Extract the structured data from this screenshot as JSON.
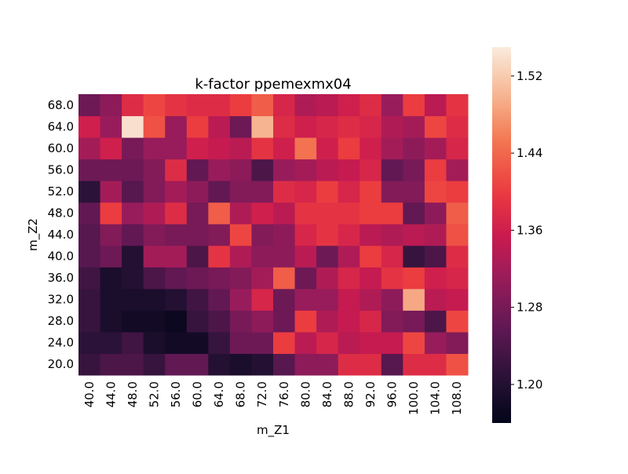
{
  "chart_data": {
    "type": "heatmap",
    "title": "k-factor ppemexmx04",
    "xlabel": "m_Z1",
    "ylabel": "m_Z2",
    "x": [
      "40.0",
      "44.0",
      "48.0",
      "52.0",
      "56.0",
      "60.0",
      "64.0",
      "68.0",
      "72.0",
      "76.0",
      "80.0",
      "84.0",
      "88.0",
      "92.0",
      "96.0",
      "100.0",
      "104.0",
      "108.0"
    ],
    "y": [
      "20.0",
      "24.0",
      "28.0",
      "32.0",
      "36.0",
      "40.0",
      "44.0",
      "48.0",
      "52.0",
      "56.0",
      "60.0",
      "64.0",
      "68.0"
    ],
    "values": [
      [
        1.22,
        1.24,
        1.24,
        1.22,
        1.26,
        1.26,
        1.2,
        1.19,
        1.2,
        1.25,
        1.3,
        1.3,
        1.38,
        1.38,
        1.25,
        1.38,
        1.38,
        1.42
      ],
      [
        1.21,
        1.21,
        1.23,
        1.19,
        1.18,
        1.18,
        1.22,
        1.27,
        1.27,
        1.4,
        1.34,
        1.37,
        1.34,
        1.35,
        1.35,
        1.41,
        1.31,
        1.29
      ],
      [
        1.22,
        1.19,
        1.18,
        1.18,
        1.17,
        1.22,
        1.24,
        1.28,
        1.3,
        1.27,
        1.4,
        1.33,
        1.35,
        1.37,
        1.29,
        1.28,
        1.24,
        1.41
      ],
      [
        1.22,
        1.19,
        1.19,
        1.19,
        1.2,
        1.23,
        1.26,
        1.31,
        1.37,
        1.27,
        1.31,
        1.31,
        1.35,
        1.33,
        1.3,
        1.49,
        1.34,
        1.35
      ],
      [
        1.23,
        1.19,
        1.2,
        1.24,
        1.26,
        1.27,
        1.28,
        1.29,
        1.32,
        1.43,
        1.27,
        1.33,
        1.37,
        1.35,
        1.39,
        1.4,
        1.36,
        1.37
      ],
      [
        1.25,
        1.27,
        1.2,
        1.32,
        1.32,
        1.24,
        1.39,
        1.33,
        1.3,
        1.3,
        1.34,
        1.27,
        1.33,
        1.4,
        1.37,
        1.22,
        1.24,
        1.38
      ],
      [
        1.25,
        1.29,
        1.26,
        1.29,
        1.28,
        1.28,
        1.29,
        1.41,
        1.29,
        1.3,
        1.37,
        1.39,
        1.37,
        1.34,
        1.33,
        1.34,
        1.33,
        1.42
      ],
      [
        1.26,
        1.4,
        1.31,
        1.33,
        1.38,
        1.28,
        1.43,
        1.33,
        1.36,
        1.34,
        1.39,
        1.39,
        1.39,
        1.4,
        1.4,
        1.26,
        1.3,
        1.43
      ],
      [
        1.21,
        1.32,
        1.25,
        1.29,
        1.32,
        1.3,
        1.26,
        1.29,
        1.29,
        1.38,
        1.37,
        1.4,
        1.37,
        1.4,
        1.29,
        1.29,
        1.41,
        1.4
      ],
      [
        1.27,
        1.27,
        1.27,
        1.29,
        1.38,
        1.26,
        1.31,
        1.3,
        1.24,
        1.31,
        1.32,
        1.34,
        1.35,
        1.37,
        1.26,
        1.28,
        1.4,
        1.32
      ],
      [
        1.32,
        1.36,
        1.28,
        1.31,
        1.31,
        1.36,
        1.35,
        1.34,
        1.39,
        1.36,
        1.45,
        1.36,
        1.4,
        1.36,
        1.32,
        1.3,
        1.32,
        1.37
      ],
      [
        1.36,
        1.31,
        1.54,
        1.42,
        1.31,
        1.4,
        1.34,
        1.27,
        1.5,
        1.38,
        1.36,
        1.37,
        1.38,
        1.37,
        1.33,
        1.32,
        1.41,
        1.38
      ],
      [
        1.27,
        1.3,
        1.38,
        1.41,
        1.39,
        1.38,
        1.38,
        1.4,
        1.43,
        1.37,
        1.33,
        1.34,
        1.36,
        1.38,
        1.31,
        1.4,
        1.34,
        1.39
      ]
    ],
    "vmin": 1.16,
    "vmax": 1.55,
    "colorbar_ticks": [
      "1.20",
      "1.28",
      "1.36",
      "1.44",
      "1.52"
    ],
    "colormap": "rocket"
  }
}
